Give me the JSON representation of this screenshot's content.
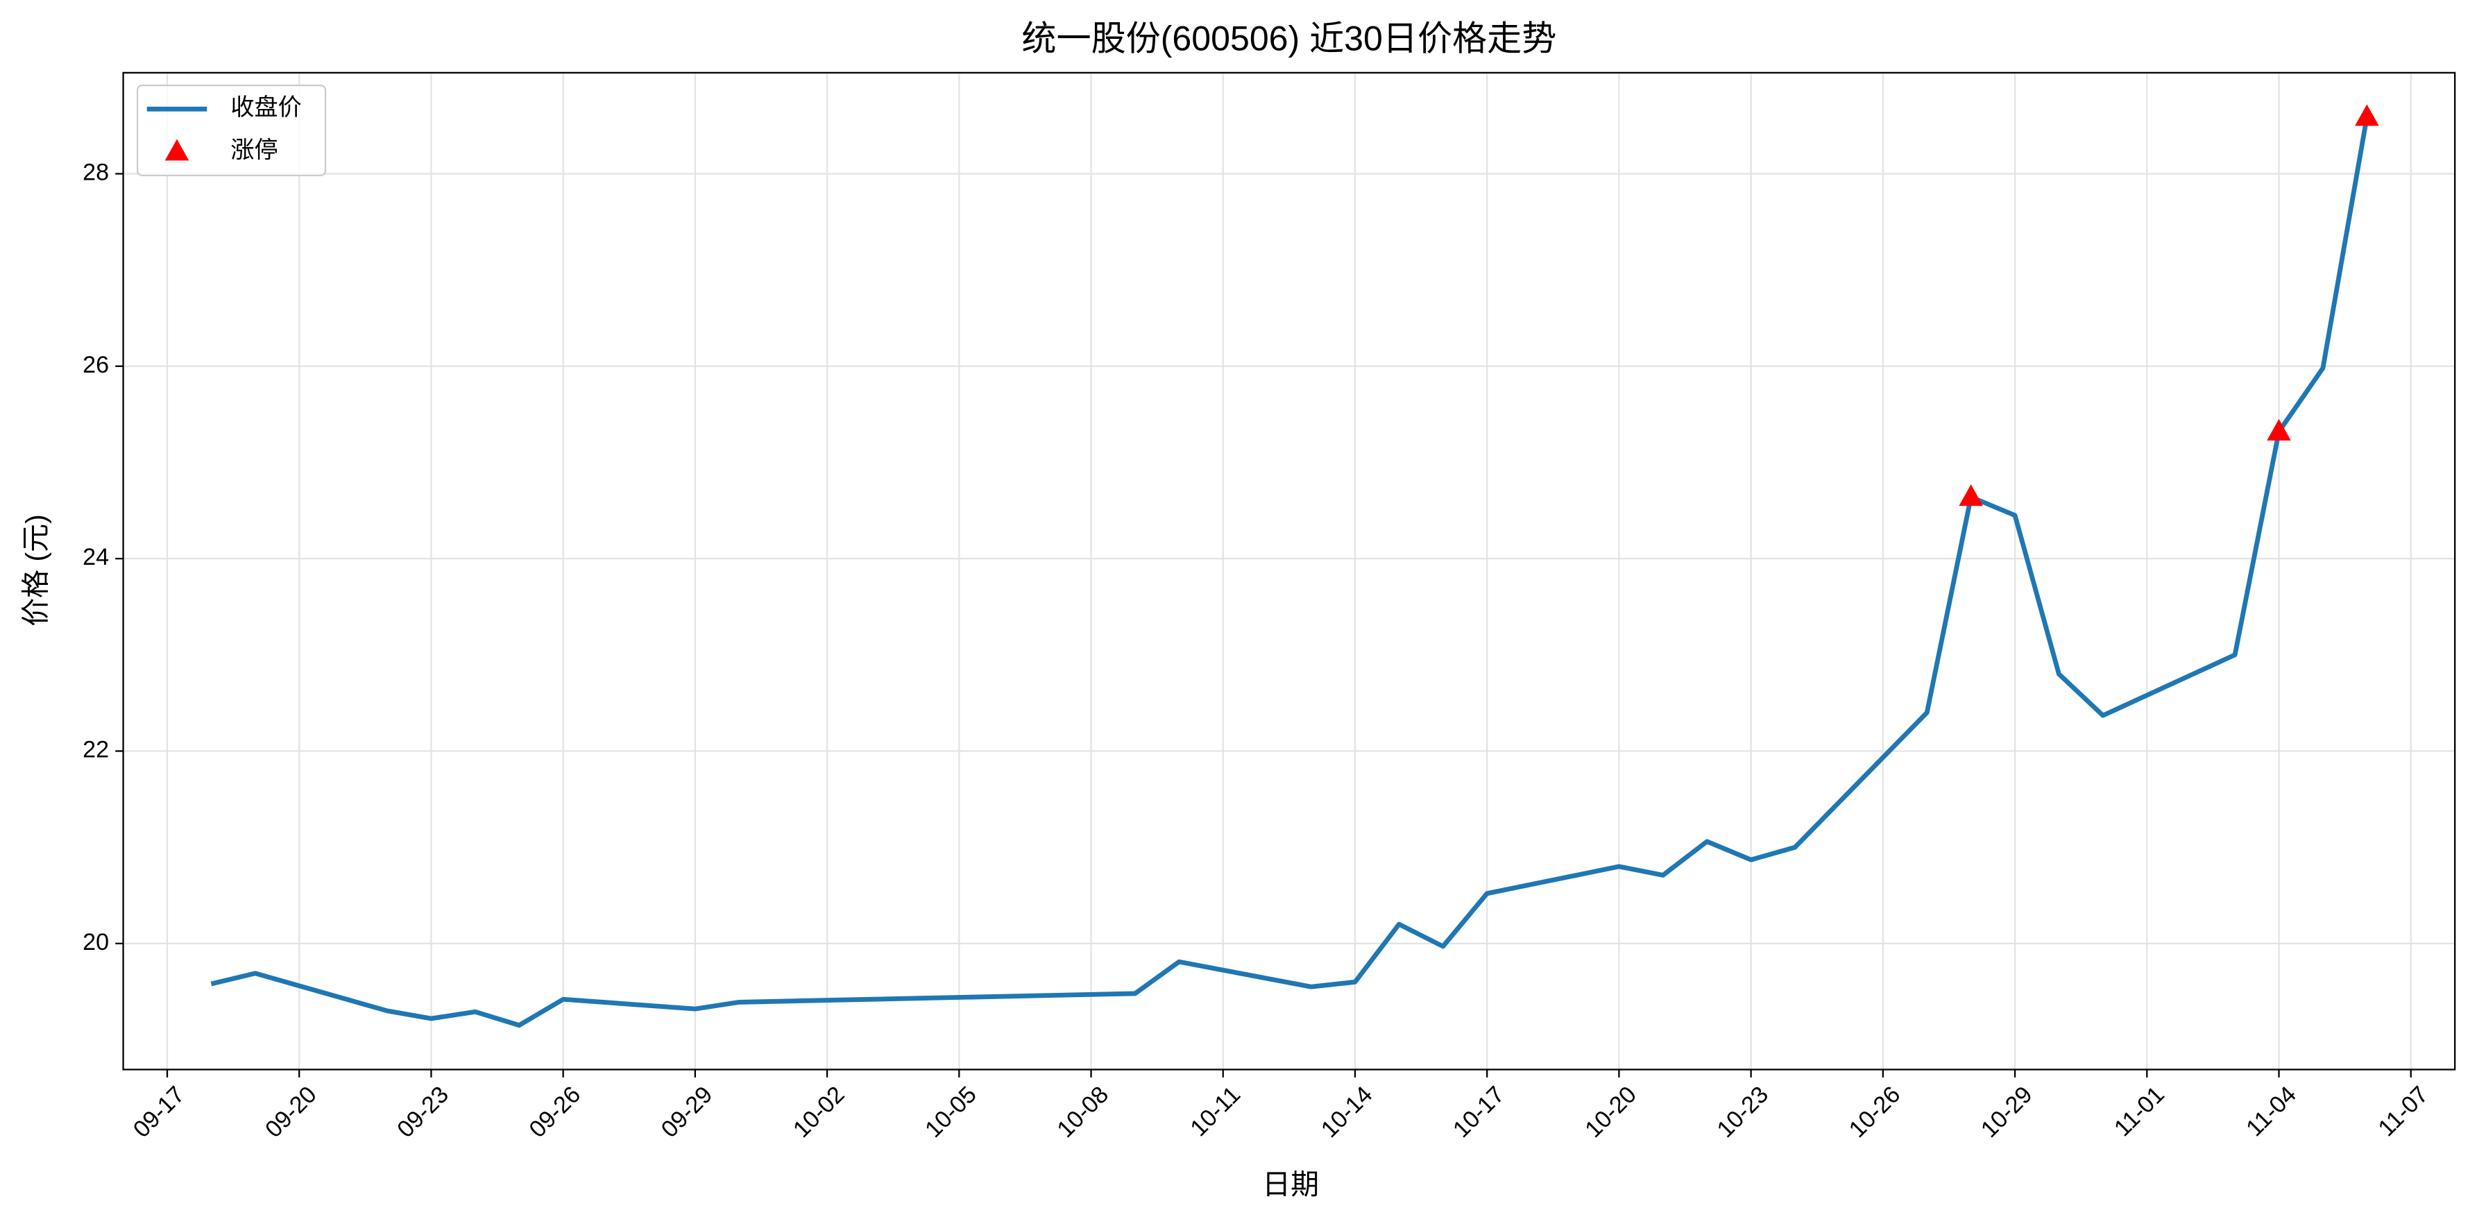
{
  "chart_data": {
    "type": "line",
    "title": "统一股份(600506) 近30日价格走势",
    "x_label": "日期",
    "y_label": "价格 (元)",
    "series": [
      {
        "name": "收盘价",
        "color": "#1f77b4",
        "style": "line",
        "x": [
          "09-18",
          "09-19",
          "09-22",
          "09-23",
          "09-24",
          "09-25",
          "09-26",
          "09-29",
          "09-30",
          "10-09",
          "10-10",
          "10-13",
          "10-14",
          "10-15",
          "10-16",
          "10-17",
          "10-20",
          "10-21",
          "10-22",
          "10-23",
          "10-24",
          "10-27",
          "10-28",
          "10-29",
          "10-30",
          "10-31",
          "11-03",
          "11-04",
          "11-05",
          "11-06"
        ],
        "values": [
          19.58,
          19.69,
          19.3,
          19.22,
          19.29,
          19.15,
          19.42,
          19.32,
          19.39,
          19.48,
          19.81,
          19.55,
          19.6,
          20.2,
          19.97,
          20.52,
          20.8,
          20.71,
          21.06,
          20.87,
          21.0,
          22.4,
          24.64,
          24.45,
          22.8,
          22.37,
          23.0,
          25.32,
          25.98,
          28.59
        ]
      },
      {
        "name": "涨停",
        "color": "#ff0000",
        "style": "scatter",
        "x": [
          "10-28",
          "11-04",
          "11-06"
        ],
        "values": [
          24.64,
          25.32,
          28.59
        ]
      }
    ],
    "xlim": [
      "09-16",
      "11-08"
    ],
    "xticks": [
      "09-17",
      "09-20",
      "09-23",
      "09-26",
      "09-29",
      "10-02",
      "10-05",
      "10-08",
      "10-11",
      "10-14",
      "10-17",
      "10-20",
      "10-23",
      "10-26",
      "10-29",
      "11-01",
      "11-04",
      "11-07"
    ],
    "ylim": [
      18.69,
      29.05
    ],
    "yticks": [
      20,
      22,
      24,
      26,
      28
    ],
    "grid": true,
    "legend": "upper left"
  }
}
